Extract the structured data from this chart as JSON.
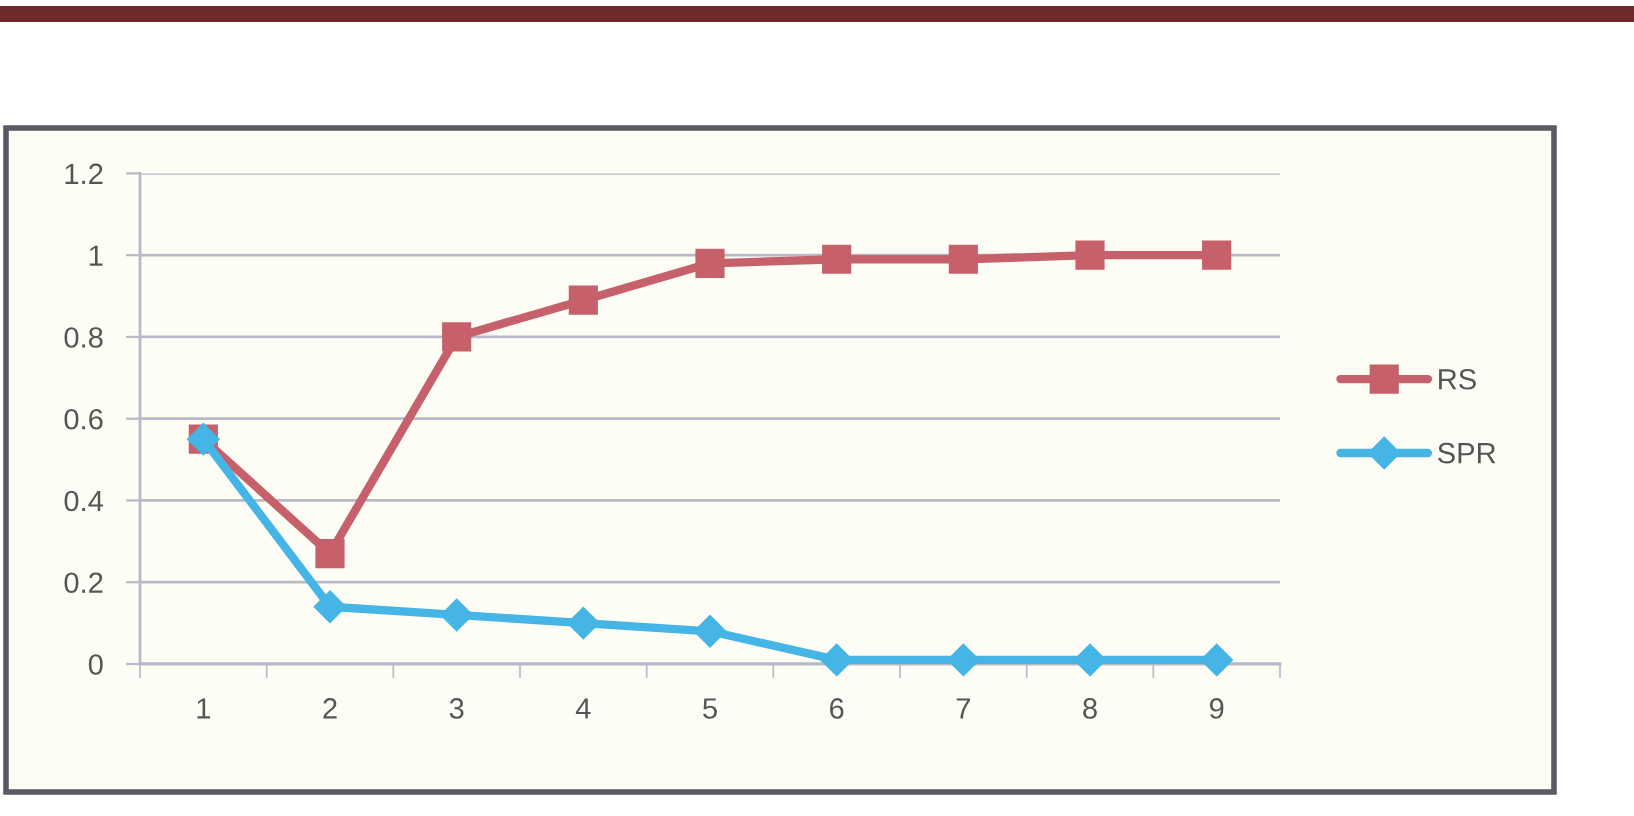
{
  "chart_data": {
    "type": "line",
    "categories": [
      "1",
      "2",
      "3",
      "4",
      "5",
      "6",
      "7",
      "8",
      "9"
    ],
    "series": [
      {
        "name": "RS",
        "color": "#c6606b",
        "marker": "square",
        "values": [
          0.55,
          0.27,
          0.8,
          0.89,
          0.98,
          0.99,
          0.99,
          1.0,
          1.0
        ]
      },
      {
        "name": "SPR",
        "color": "#45b5e6",
        "marker": "diamond",
        "values": [
          0.55,
          0.14,
          0.12,
          0.1,
          0.08,
          0.01,
          0.01,
          0.01,
          0.01
        ]
      }
    ],
    "ylim": [
      0,
      1.2
    ],
    "yticks": [
      0,
      0.2,
      0.4,
      0.6,
      0.8,
      1,
      1.2
    ],
    "grid": "y",
    "legend": "right",
    "line_style": "solid"
  }
}
